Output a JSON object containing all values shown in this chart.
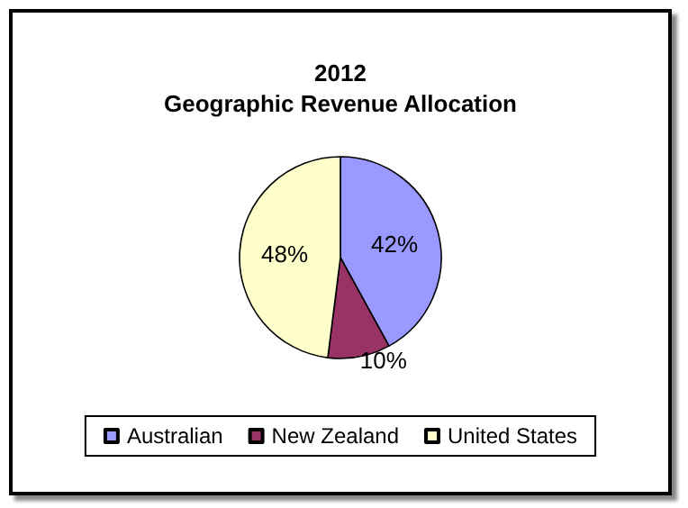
{
  "chart_data": {
    "type": "pie",
    "title": "2012\nGeographic Revenue Allocation",
    "categories": [
      "Australian",
      "New Zealand",
      "United States"
    ],
    "values": [
      42,
      10,
      48
    ],
    "colors": [
      "#9999ff",
      "#993366",
      "#ffffcc"
    ],
    "value_labels": [
      "42%",
      "10%",
      "48%"
    ],
    "legend": "bottom"
  }
}
